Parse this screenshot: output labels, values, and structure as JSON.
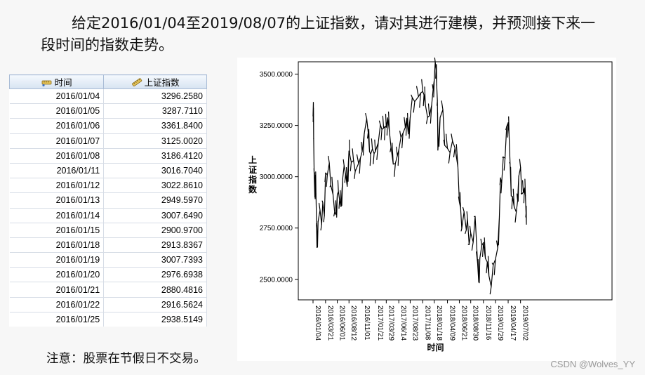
{
  "problem": {
    "line1": "给定2016/01/04至2019/08/07的上证指数，请对其进行建模，并预测接下来一",
    "line2": "段时间的指数走势。"
  },
  "table": {
    "columns": [
      "时间",
      "上证指数"
    ],
    "rows": [
      [
        "2016/01/04",
        "3296.2580"
      ],
      [
        "2016/01/05",
        "3287.7110"
      ],
      [
        "2016/01/06",
        "3361.8400"
      ],
      [
        "2016/01/07",
        "3125.0020"
      ],
      [
        "2016/01/08",
        "3186.4120"
      ],
      [
        "2016/01/11",
        "3016.7040"
      ],
      [
        "2016/01/12",
        "3022.8610"
      ],
      [
        "2016/01/13",
        "2949.5970"
      ],
      [
        "2016/01/14",
        "3007.6490"
      ],
      [
        "2016/01/15",
        "2900.9700"
      ],
      [
        "2016/01/18",
        "2913.8367"
      ],
      [
        "2016/01/19",
        "3007.7393"
      ],
      [
        "2016/01/20",
        "2976.6938"
      ],
      [
        "2016/01/21",
        "2880.4816"
      ],
      [
        "2016/01/22",
        "2916.5624"
      ],
      [
        "2016/01/25",
        "2938.5149"
      ]
    ]
  },
  "note": "注意：股票在节假日不交易。",
  "watermark": "CSDN @Wolves_YY",
  "chart_data": {
    "type": "line",
    "xlabel": "时间",
    "ylabel": "上证指数",
    "ylim": [
      2400,
      3560
    ],
    "yticks": [
      2500,
      2750,
      3000,
      3250,
      3500
    ],
    "ytick_labels": [
      "2500.0000",
      "2750.0000",
      "3000.0000",
      "3250.0000",
      "3500.0000"
    ],
    "xlim": [
      "2016-01-04",
      "2019-08-07"
    ],
    "xticks": [
      "2016-01-04",
      "2016-03-21",
      "2016-06-01",
      "2016-08-12",
      "2016-11-01",
      "2017-01-21",
      "2017-03-29",
      "2017-06-14",
      "2017-08-23",
      "2017-11-08",
      "2018-01-18",
      "2018-04-09",
      "2018-06-21",
      "2018-08-30",
      "2018-11-16",
      "2019-01-29",
      "2019-04-17",
      "2019-07-02"
    ],
    "xtick_labels": [
      "2016/01/04",
      "2016/03/21",
      "2016/06/01",
      "2016/08/12",
      "2016/11/01",
      "2017/01/21",
      "2017/03/29",
      "2017/06/14",
      "2017/08/23",
      "2017/11/08",
      "2018/01/18",
      "2018/04/09",
      "2018/06/21",
      "2018/08/30",
      "2018/11/16",
      "2019/01/29",
      "2019/04/17",
      "2019/07/02"
    ],
    "line_color": "#000000",
    "series": [
      {
        "x": [
          "2016-01-04",
          "2016-01-06",
          "2016-01-08",
          "2016-01-11",
          "2016-01-15",
          "2016-01-19",
          "2016-01-22",
          "2016-01-26",
          "2016-01-28",
          "2016-02-04",
          "2016-02-16",
          "2016-02-26",
          "2016-03-04",
          "2016-03-14",
          "2016-03-21",
          "2016-04-01",
          "2016-04-13",
          "2016-04-22",
          "2016-05-06",
          "2016-05-16",
          "2016-05-25",
          "2016-06-01",
          "2016-06-08",
          "2016-06-15",
          "2016-06-24",
          "2016-07-04",
          "2016-07-13",
          "2016-07-22",
          "2016-08-01",
          "2016-08-12",
          "2016-08-16",
          "2016-08-26",
          "2016-09-09",
          "2016-09-19",
          "2016-10-10",
          "2016-10-21",
          "2016-11-01",
          "2016-11-14",
          "2016-11-29",
          "2016-12-08",
          "2016-12-16",
          "2016-12-23",
          "2017-01-03",
          "2017-01-13",
          "2017-01-21",
          "2017-02-08",
          "2017-02-21",
          "2017-03-02",
          "2017-03-13",
          "2017-03-22",
          "2017-03-29",
          "2017-04-07",
          "2017-04-17",
          "2017-04-27",
          "2017-05-11",
          "2017-05-24",
          "2017-06-05",
          "2017-06-14",
          "2017-06-27",
          "2017-07-10",
          "2017-07-24",
          "2017-08-02",
          "2017-08-11",
          "2017-08-23",
          "2017-09-05",
          "2017-09-20",
          "2017-10-13",
          "2017-10-26",
          "2017-11-08",
          "2017-11-16",
          "2017-11-24",
          "2017-12-08",
          "2017-12-19",
          "2018-01-02",
          "2018-01-11",
          "2018-01-18",
          "2018-01-24",
          "2018-01-29",
          "2018-02-02",
          "2018-02-06",
          "2018-02-09",
          "2018-02-23",
          "2018-03-12",
          "2018-03-23",
          "2018-04-09",
          "2018-04-25",
          "2018-05-10",
          "2018-05-25",
          "2018-06-12",
          "2018-06-21",
          "2018-06-29",
          "2018-07-06",
          "2018-07-20",
          "2018-08-03",
          "2018-08-10",
          "2018-08-20",
          "2018-08-30",
          "2018-09-14",
          "2018-09-26",
          "2018-10-11",
          "2018-10-18",
          "2018-10-25",
          "2018-11-06",
          "2018-11-16",
          "2018-11-28",
          "2018-12-10",
          "2018-12-20",
          "2019-01-03",
          "2019-01-15",
          "2019-01-29",
          "2019-02-12",
          "2019-02-22",
          "2019-03-01",
          "2019-03-08",
          "2019-03-18",
          "2019-03-29",
          "2019-04-08",
          "2019-04-17",
          "2019-04-23",
          "2019-04-29",
          "2019-05-06",
          "2019-05-13",
          "2019-05-24",
          "2019-06-06",
          "2019-06-14",
          "2019-06-21",
          "2019-07-02",
          "2019-07-10",
          "2019-07-19",
          "2019-07-26",
          "2019-08-01",
          "2019-08-05",
          "2019-08-07"
        ],
        "y": [
          3296.26,
          3361.84,
          3186.41,
          3016.7,
          2900.97,
          3007.74,
          2916.56,
          2749.79,
          2655.66,
          2781.02,
          2836.57,
          2767.21,
          2874.15,
          2810.31,
          3018.29,
          3009.53,
          3066.64,
          2959.24,
          2913.25,
          2827.11,
          2815.09,
          2913.51,
          2927.16,
          2887.21,
          2854.29,
          2988.6,
          3054.02,
          3012.82,
          2953.39,
          3125.2,
          3110.04,
          3070.31,
          3078.85,
          3026.05,
          3065.25,
          3090.94,
          3122.44,
          3210.37,
          3282.99,
          3215.37,
          3122.98,
          3110.15,
          3135.92,
          3112.76,
          3123.14,
          3166.98,
          3253.33,
          3230.03,
          3237.02,
          3245.22,
          3241.31,
          3286.62,
          3222.17,
          3143.72,
          3061.5,
          3064.08,
          3102.1,
          3130.67,
          3191.2,
          3212.63,
          3240.61,
          3285.06,
          3208.54,
          3287.71,
          3385.39,
          3366.0,
          3390.52,
          3407.57,
          3415.46,
          3399.25,
          3352.42,
          3289.45,
          3296.54,
          3348.33,
          3425.34,
          3474.75,
          3559.47,
          3523.0,
          3446.98,
          3370.65,
          3129.85,
          3289.02,
          3326.7,
          3152.76,
          3138.29,
          3117.97,
          3174.41,
          3141.3,
          3049.8,
          2875.81,
          2847.42,
          2747.23,
          2829.27,
          2740.44,
          2795.31,
          2668.97,
          2725.25,
          2681.64,
          2806.81,
          2583.46,
          2486.42,
          2603.3,
          2665.43,
          2679.11,
          2601.74,
          2584.58,
          2516.25,
          2464.36,
          2570.34,
          2596.98,
          2653.9,
          2804.23,
          2994.01,
          2969.86,
          3096.42,
          3090.76,
          3244.81,
          3263.12,
          3198.59,
          3062.5,
          2906.46,
          2903.71,
          2852.99,
          2827.8,
          2881.97,
          3001.98,
          3044.9,
          2915.3,
          2924.2,
          2944.54,
          2908.77,
          2821.5,
          2768.68
        ]
      }
    ]
  }
}
